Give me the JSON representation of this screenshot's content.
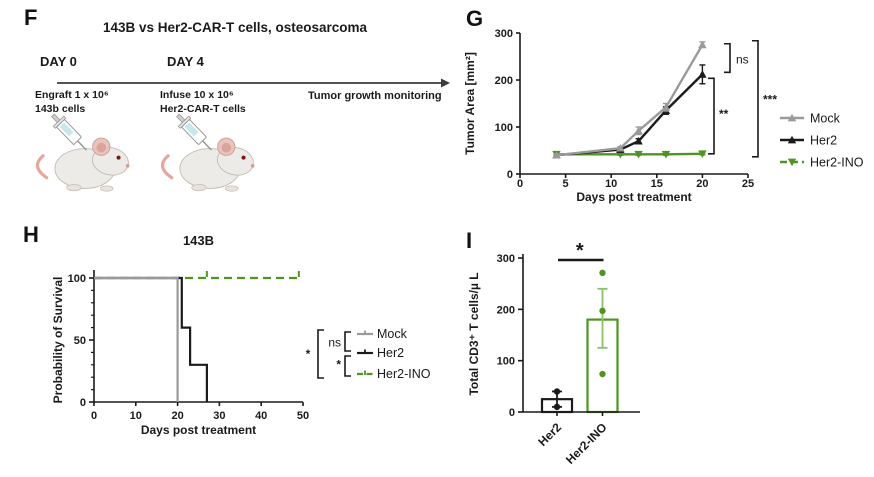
{
  "panels": {
    "f": {
      "label": "F",
      "title": "143B vs Her2-CAR-T cells, osteosarcoma",
      "timeline": {
        "day0": {
          "day": "DAY 0",
          "line1": "Engraft 1 x 10⁶",
          "line2": "143b cells"
        },
        "day4": {
          "day": "DAY 4",
          "line1": "Infuse 10 x 10⁶",
          "line2": "Her2-CAR-T cells"
        },
        "monitoring": "Tumor growth monitoring"
      }
    },
    "g": {
      "label": "G"
    },
    "h": {
      "label": "H"
    },
    "i": {
      "label": "I"
    }
  },
  "colors": {
    "axis": "#1a1a1a",
    "mock": "#9a9a9a",
    "her2": "#1b1b1b",
    "her2_ino": "#4e9420",
    "ino_light": "#8cc263"
  },
  "chart_data": [
    {
      "id": "tumor-growth",
      "type": "line",
      "xlabel": "Days post treatment",
      "ylabel": "Tumor Area [mm²]",
      "xlim": [
        0,
        25
      ],
      "xticks": [
        0,
        5,
        10,
        15,
        20,
        25
      ],
      "ylim": [
        0,
        300
      ],
      "yticks": [
        0,
        100,
        200,
        300
      ],
      "x": [
        4,
        11,
        13,
        16,
        20
      ],
      "series": [
        {
          "name": "Mock",
          "color_key": "mock",
          "marker": "triangle-up",
          "values": [
            40,
            55,
            92,
            142,
            275
          ],
          "errors": [
            3,
            3,
            8,
            8,
            6
          ]
        },
        {
          "name": "Her2",
          "color_key": "her2",
          "marker": "triangle-up",
          "values": [
            40,
            52,
            70,
            135,
            212
          ],
          "errors": [
            3,
            3,
            5,
            8,
            20
          ]
        },
        {
          "name": "Her2-INO",
          "color_key": "her2_ino",
          "marker": "triangle-down",
          "values": [
            42,
            42,
            42,
            42,
            43
          ],
          "errors": [
            2,
            2,
            2,
            2,
            2
          ]
        }
      ],
      "legend": [
        {
          "label": "Mock",
          "dash": false
        },
        {
          "label": "Her2",
          "dash": false
        },
        {
          "label": "Her2-INO",
          "dash": true
        }
      ],
      "significance": [
        {
          "label": "ns",
          "between": [
            "Mock",
            "Her2"
          ]
        },
        {
          "label": "**",
          "between": [
            "Her2",
            "Her2-INO"
          ]
        },
        {
          "label": "***",
          "between": [
            "Mock",
            "Her2-INO"
          ]
        }
      ]
    },
    {
      "id": "survival",
      "type": "step",
      "title": "143B",
      "xlabel": "Days post treatment",
      "ylabel": "Probability of Survival",
      "xlim": [
        0,
        50
      ],
      "xticks": [
        0,
        10,
        20,
        30,
        40,
        50
      ],
      "ylim": [
        0,
        100
      ],
      "yticks": [
        0,
        50,
        100
      ],
      "series": [
        {
          "name": "Mock",
          "color_key": "mock",
          "dash": false,
          "points": [
            [
              0,
              100
            ],
            [
              20,
              100
            ],
            [
              20,
              0
            ]
          ]
        },
        {
          "name": "Her2",
          "color_key": "her2",
          "dash": false,
          "points": [
            [
              0,
              100
            ],
            [
              21,
              100
            ],
            [
              21,
              60
            ],
            [
              23,
              60
            ],
            [
              23,
              30
            ],
            [
              27,
              30
            ],
            [
              27,
              0
            ]
          ]
        },
        {
          "name": "Her2-INO",
          "color_key": "her2_ino",
          "dash": true,
          "points": [
            [
              0,
              100
            ],
            [
              49,
              100
            ]
          ],
          "censor_ticks": [
            27,
            49
          ]
        }
      ],
      "legend": [
        {
          "label": "Mock",
          "dash": false
        },
        {
          "label": "Her2",
          "dash": false
        },
        {
          "label": "Her2-INO",
          "dash": true
        }
      ],
      "significance": [
        {
          "label": "*",
          "between": [
            "Mock",
            "Her2-INO"
          ]
        },
        {
          "label": "ns",
          "between": [
            "Mock",
            "Her2"
          ]
        },
        {
          "label": "*",
          "between": [
            "Her2",
            "Her2-INO"
          ]
        }
      ]
    },
    {
      "id": "cd3-counts",
      "type": "bar",
      "ylabel": "Total CD3⁺ T cells/µ L",
      "ylim": [
        0,
        300
      ],
      "yticks": [
        0,
        100,
        200,
        300
      ],
      "categories": [
        "Her2",
        "Her2-INO"
      ],
      "bar_colors": [
        "her2",
        "her2_ino"
      ],
      "values": [
        25,
        180
      ],
      "error_low": [
        10,
        125
      ],
      "error_high": [
        40,
        240
      ],
      "points": [
        [
          10,
          40
        ],
        [
          74,
          197,
          271
        ]
      ],
      "significance": [
        {
          "label": "*",
          "between": [
            "Her2",
            "Her2-INO"
          ]
        }
      ]
    }
  ]
}
